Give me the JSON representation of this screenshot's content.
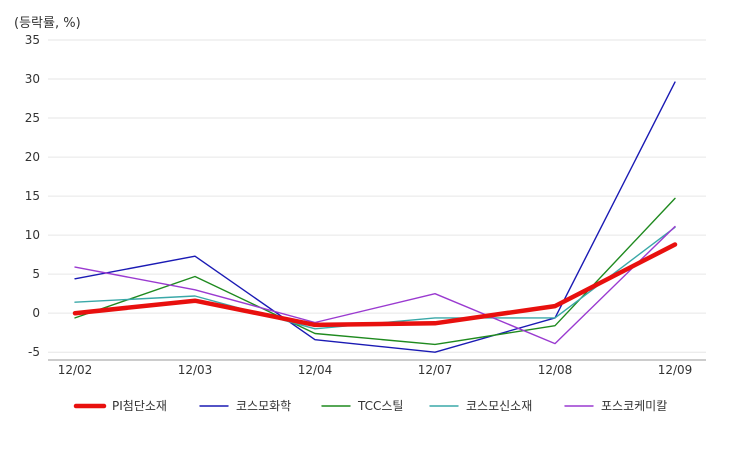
{
  "chart_data": {
    "type": "line",
    "unit_label": "(등락률, %)",
    "categories": [
      "12/02",
      "12/03",
      "12/04",
      "12/07",
      "12/08",
      "12/09"
    ],
    "y_ticks": [
      35,
      30,
      25,
      20,
      15,
      10,
      5,
      0,
      -5
    ],
    "ylim": [
      -6,
      35
    ],
    "grid": "horizontal",
    "legend_position": "bottom",
    "series": [
      {
        "name": "PI첨단소재",
        "color": "#e8100e",
        "values": [
          0.0,
          1.6,
          -1.5,
          -1.3,
          0.9,
          8.8
        ]
      },
      {
        "name": "코스모화학",
        "color": "#1a1ab4",
        "values": [
          4.4,
          7.3,
          -3.4,
          -5.0,
          -0.6,
          29.6
        ]
      },
      {
        "name": "TCC스틸",
        "color": "#1f8a1f",
        "values": [
          -0.6,
          4.7,
          -2.6,
          -4.0,
          -1.6,
          14.7
        ]
      },
      {
        "name": "코스모신소재",
        "color": "#3aa8a8",
        "values": [
          1.4,
          2.2,
          -2.0,
          -0.6,
          -0.6,
          11.0
        ]
      },
      {
        "name": "포스코케미칼",
        "color": "#9a3ad0",
        "values": [
          5.9,
          3.0,
          -1.2,
          2.5,
          -3.9,
          11.1
        ]
      }
    ]
  }
}
